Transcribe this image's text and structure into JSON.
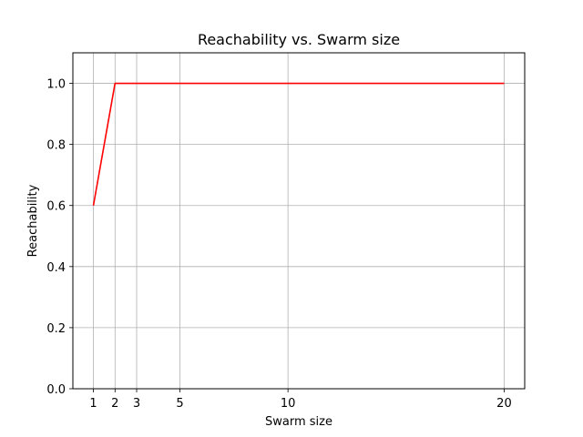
{
  "chart_data": {
    "type": "line",
    "title": "Reachability vs. Swarm size",
    "xlabel": "Swarm size",
    "ylabel": "Reachability",
    "x": [
      1,
      2,
      3,
      5,
      10,
      20
    ],
    "series": [
      {
        "values": [
          0.6,
          1.0,
          1.0,
          1.0,
          1.0,
          1.0
        ],
        "color": "#ff0000"
      }
    ],
    "xticks": [
      "1",
      "2",
      "3",
      "5",
      "10",
      "20"
    ],
    "yticks": [
      "0.0",
      "0.2",
      "0.4",
      "0.6",
      "0.8",
      "1.0"
    ],
    "xlim": [
      0.05,
      20.95
    ],
    "ylim": [
      0,
      1.1
    ],
    "grid": true,
    "grid_color": "#b0b0b0"
  }
}
